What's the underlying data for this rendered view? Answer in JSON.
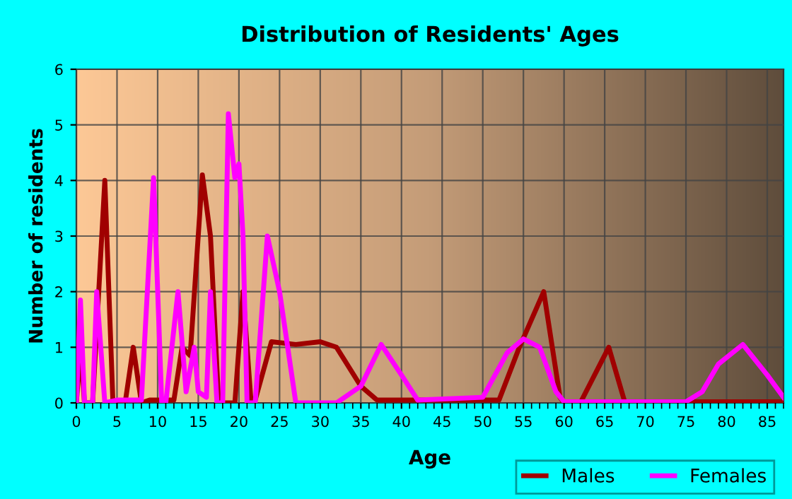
{
  "chart_data": {
    "type": "line",
    "title": "Distribution of Residents' Ages",
    "xlabel": "Age",
    "ylabel": "Number of residents",
    "xlim": [
      0,
      87
    ],
    "xticks": [
      0,
      5,
      10,
      15,
      20,
      25,
      30,
      35,
      40,
      45,
      50,
      55,
      60,
      65,
      70,
      75,
      80,
      85
    ],
    "ylim": [
      0,
      6
    ],
    "yticks": [
      0,
      1,
      2,
      3,
      4,
      5,
      6
    ],
    "grid": true,
    "legend": "bottom right",
    "series": [
      {
        "name": "Males",
        "color": "#a00000",
        "x": [
          0,
          0.5,
          1,
          2,
          3.5,
          4.5,
          6,
          7,
          8,
          9,
          12,
          13,
          14,
          15.5,
          16.5,
          17.5,
          19.5,
          20.5,
          21.5,
          22,
          24,
          27,
          30,
          32,
          35,
          37,
          40,
          45,
          52,
          54.5,
          57.5,
          59.5,
          60,
          62,
          65.5,
          67.5,
          70,
          87
        ],
        "values": [
          0,
          1,
          0,
          0,
          4,
          0,
          0,
          1,
          0,
          0.05,
          0.05,
          1,
          0.85,
          4.1,
          3,
          0,
          0,
          2,
          0,
          0.05,
          1.1,
          1.05,
          1.1,
          1,
          0.3,
          0.05,
          0.05,
          0.05,
          0.05,
          1,
          2,
          0.1,
          0,
          0,
          1,
          0,
          0.02,
          0.02
        ]
      },
      {
        "name": "Females",
        "color": "#ff00ff",
        "x": [
          0,
          0.5,
          1,
          2,
          2.5,
          3.5,
          5,
          8,
          9.5,
          10.5,
          11,
          12.5,
          13.5,
          14.5,
          15,
          16,
          16.5,
          17.3,
          18,
          18.7,
          19.5,
          20,
          20.5,
          21,
          22,
          23.5,
          25,
          27,
          32,
          35,
          37.5,
          40,
          42,
          50,
          53,
          55,
          57,
          59,
          60,
          75,
          77,
          79,
          82,
          85,
          87
        ],
        "values": [
          0,
          1.85,
          0,
          0,
          2,
          0,
          0.05,
          0.05,
          4.05,
          0,
          0,
          2,
          0.2,
          1,
          0.2,
          0.1,
          2,
          0,
          0,
          5.2,
          4.05,
          4.3,
          3,
          0,
          0,
          3,
          2,
          0,
          0,
          0.3,
          1.05,
          0.5,
          0.05,
          0.1,
          0.9,
          1.15,
          1,
          0.2,
          0.02,
          0.02,
          0.2,
          0.7,
          1.05,
          0.5,
          0.1
        ]
      }
    ]
  }
}
